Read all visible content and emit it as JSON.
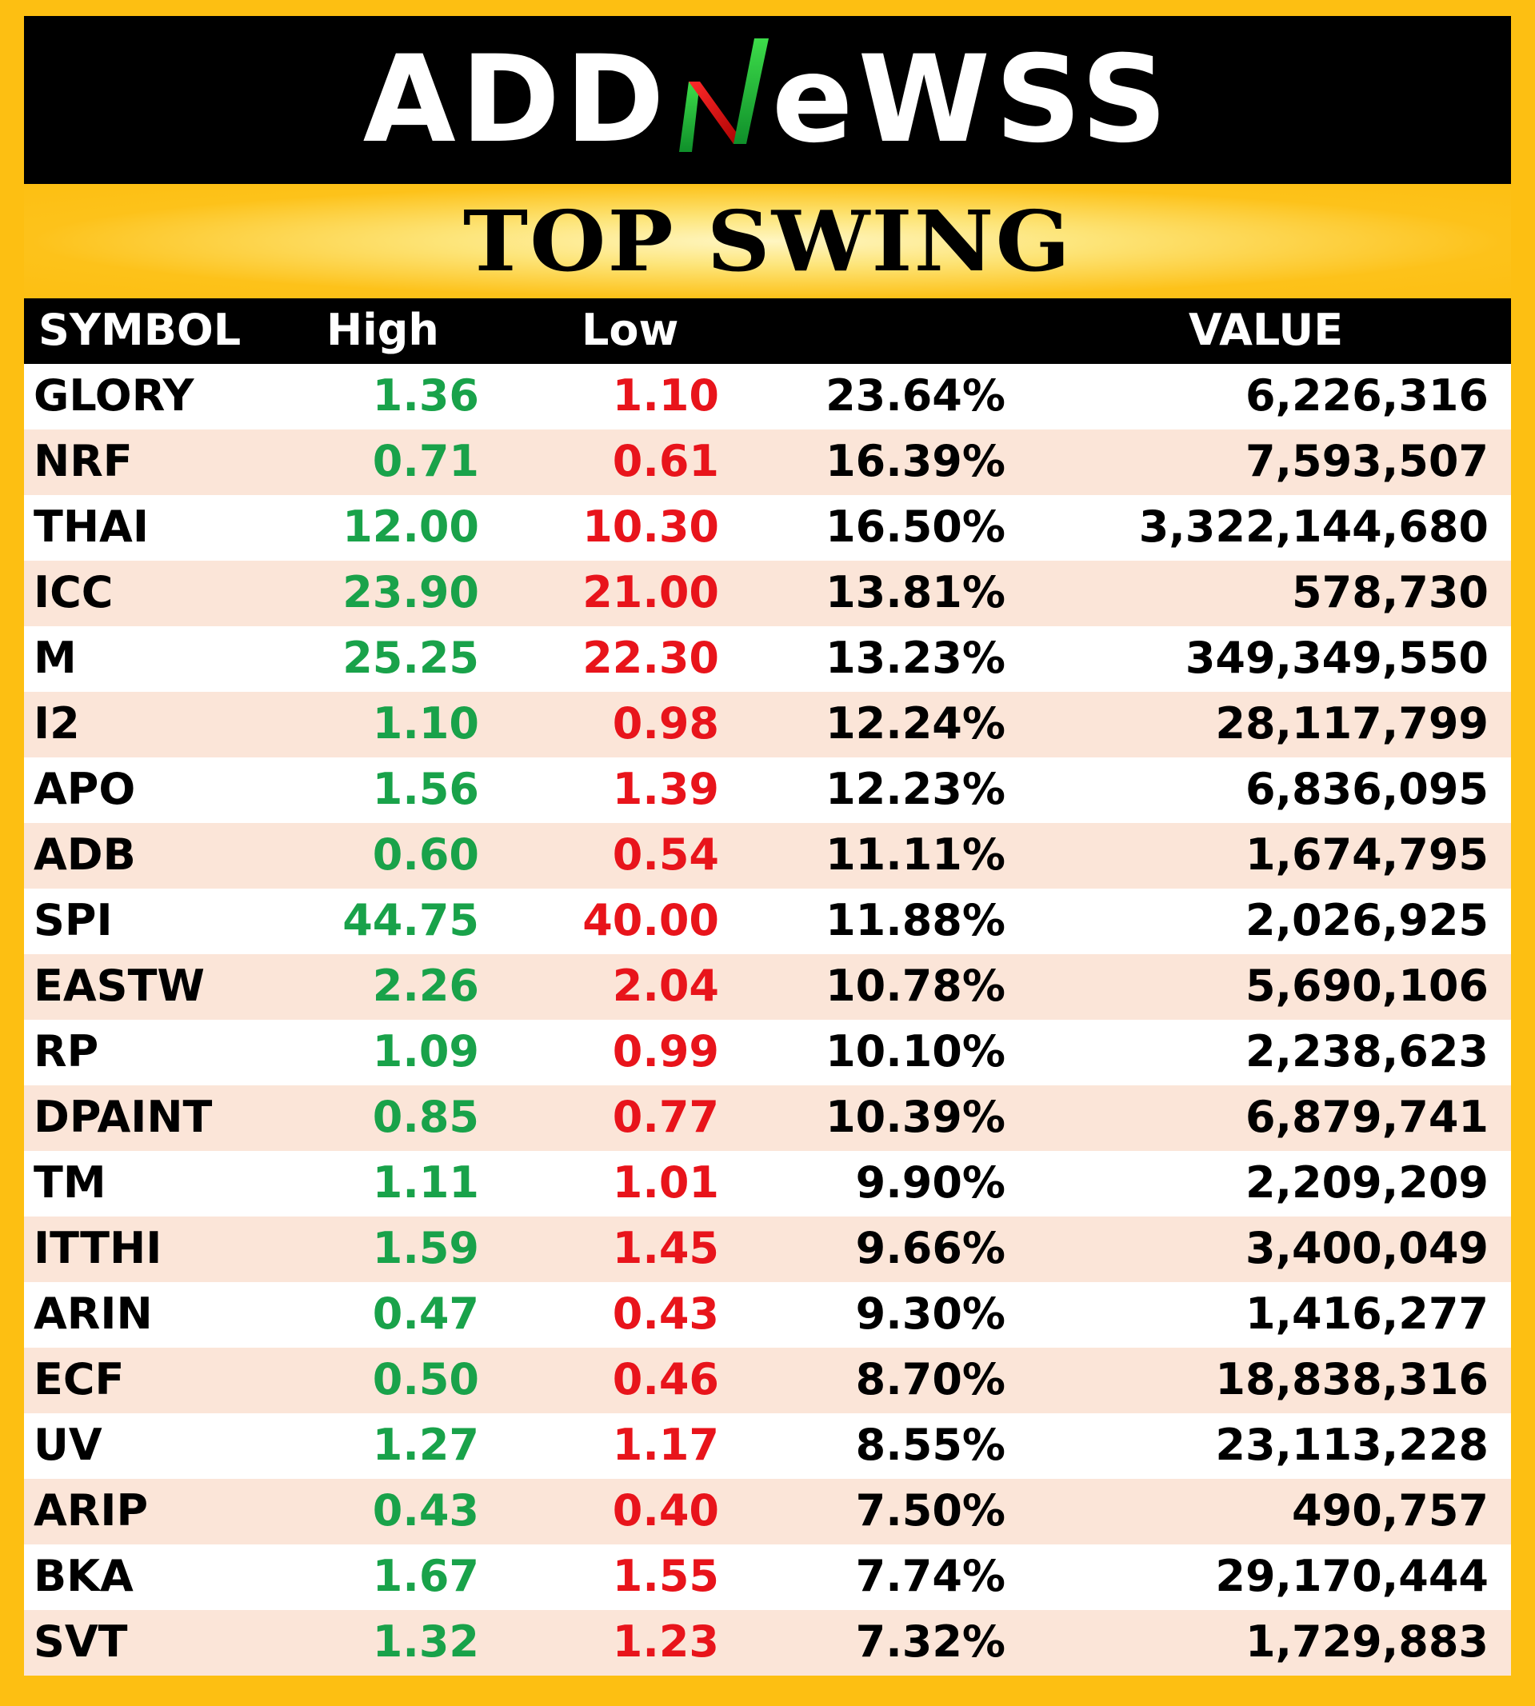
{
  "brand": {
    "logo_left": "ADD",
    "logo_right": "eWSS"
  },
  "title": "TOP SWING",
  "table": {
    "headers": {
      "symbol": "SYMBOL",
      "high": "High",
      "low": "Low",
      "pct": "",
      "value": "VALUE"
    },
    "rows": [
      {
        "symbol": "GLORY",
        "high": "1.36",
        "low": "1.10",
        "pct": "23.64%",
        "value": "6,226,316"
      },
      {
        "symbol": "NRF",
        "high": "0.71",
        "low": "0.61",
        "pct": "16.39%",
        "value": "7,593,507"
      },
      {
        "symbol": "THAI",
        "high": "12.00",
        "low": "10.30",
        "pct": "16.50%",
        "value": "3,322,144,680"
      },
      {
        "symbol": "ICC",
        "high": "23.90",
        "low": "21.00",
        "pct": "13.81%",
        "value": "578,730"
      },
      {
        "symbol": "M",
        "high": "25.25",
        "low": "22.30",
        "pct": "13.23%",
        "value": "349,349,550"
      },
      {
        "symbol": "I2",
        "high": "1.10",
        "low": "0.98",
        "pct": "12.24%",
        "value": "28,117,799"
      },
      {
        "symbol": "APO",
        "high": "1.56",
        "low": "1.39",
        "pct": "12.23%",
        "value": "6,836,095"
      },
      {
        "symbol": "ADB",
        "high": "0.60",
        "low": "0.54",
        "pct": "11.11%",
        "value": "1,674,795"
      },
      {
        "symbol": "SPI",
        "high": "44.75",
        "low": "40.00",
        "pct": "11.88%",
        "value": "2,026,925"
      },
      {
        "symbol": "EASTW",
        "high": "2.26",
        "low": "2.04",
        "pct": "10.78%",
        "value": "5,690,106"
      },
      {
        "symbol": "RP",
        "high": "1.09",
        "low": "0.99",
        "pct": "10.10%",
        "value": "2,238,623"
      },
      {
        "symbol": "DPAINT",
        "high": "0.85",
        "low": "0.77",
        "pct": "10.39%",
        "value": "6,879,741"
      },
      {
        "symbol": "TM",
        "high": "1.11",
        "low": "1.01",
        "pct": "9.90%",
        "value": "2,209,209"
      },
      {
        "symbol": "ITTHI",
        "high": "1.59",
        "low": "1.45",
        "pct": "9.66%",
        "value": "3,400,049"
      },
      {
        "symbol": "ARIN",
        "high": "0.47",
        "low": "0.43",
        "pct": "9.30%",
        "value": "1,416,277"
      },
      {
        "symbol": "ECF",
        "high": "0.50",
        "low": "0.46",
        "pct": "8.70%",
        "value": "18,838,316"
      },
      {
        "symbol": "UV",
        "high": "1.27",
        "low": "1.17",
        "pct": "8.55%",
        "value": "23,113,228"
      },
      {
        "symbol": "ARIP",
        "high": "0.43",
        "low": "0.40",
        "pct": "7.50%",
        "value": "490,757"
      },
      {
        "symbol": "BKA",
        "high": "1.67",
        "low": "1.55",
        "pct": "7.74%",
        "value": "29,170,444"
      },
      {
        "symbol": "SVT",
        "high": "1.32",
        "low": "1.23",
        "pct": "7.32%",
        "value": "1,729,883"
      }
    ]
  },
  "colors": {
    "border": "#fdbf12",
    "header_bg": "#000000",
    "high": "#19a24a",
    "low": "#e8141b",
    "row_alt": "#fbe5d8"
  }
}
